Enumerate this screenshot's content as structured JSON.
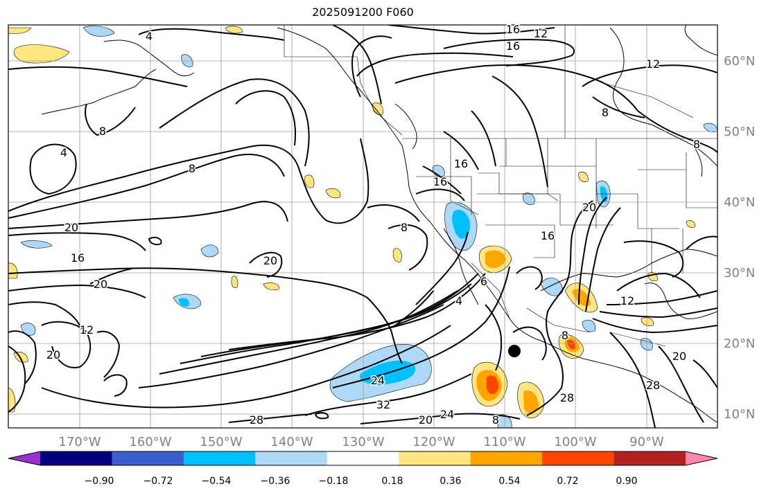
{
  "title": "2025091200 F060",
  "longitude_labels": [
    "170°W",
    "160°W",
    "150°W",
    "140°W",
    "130°W",
    "120°W",
    "110°W",
    "100°W",
    "90°W"
  ],
  "latitude_labels": [
    "60°N",
    "50°N",
    "40°N",
    "30°N",
    "20°N",
    "10°N"
  ],
  "contour_labels": [
    "4",
    "8",
    "8",
    "12",
    "16",
    "16",
    "20",
    "20",
    "16",
    "20",
    "12",
    "20",
    "24",
    "32",
    "28",
    "20",
    "24",
    "8",
    "28",
    "28",
    "20",
    "8",
    "12",
    "16",
    "16",
    "16",
    "20",
    "4",
    "8",
    "6",
    "12",
    "8",
    "4",
    "8"
  ],
  "colorbar": {
    "ticks": [
      "−0.90",
      "−0.72",
      "−0.54",
      "−0.36",
      "−0.18",
      "0.18",
      "0.36",
      "0.54",
      "0.72",
      "0.90"
    ],
    "colors": [
      "#9932cc",
      "#000080",
      "#3a5fcd",
      "#00bfff",
      "#add8f6",
      "#ffffff",
      "#ffe680",
      "#ffa500",
      "#ff4500",
      "#b22222",
      "#ff88aa"
    ]
  },
  "colors": {
    "positive_light": "#ffe680",
    "positive_mid": "#ffa500",
    "positive_high": "#ff4500",
    "negative_light": "#add8f6",
    "negative_mid": "#00bfff",
    "gridline": "#9a9a9a",
    "axis_label": "#808080"
  },
  "marker": "storm-center-dot"
}
